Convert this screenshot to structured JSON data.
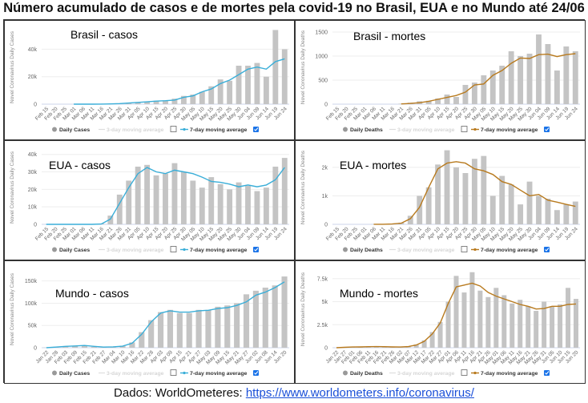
{
  "title": "Número acumulado de casos e de mortes pela covid-19 no Brasil, EUA e no Mundo até 24/06",
  "footer": {
    "label": "Dados: WorldOmeteres: ",
    "link": "https://www.worldometers.info/coronavirus/"
  },
  "colors": {
    "bars": "#c4c4c4",
    "cases_line": "#3aaed8",
    "deaths_line": "#b87a1e",
    "checkbox": "#1a73e8"
  },
  "chart_data": [
    {
      "type": "bar",
      "overlay_label": "Brasil - casos",
      "ylabel": "Novel Coronavirus Daily Cases",
      "line_color_key": "cases_line",
      "legend": [
        "Daily Cases",
        "3-day moving average",
        "7-day moving average"
      ],
      "ylim": [
        0,
        56000
      ],
      "yticks": [
        0,
        20000,
        40000
      ],
      "ytick_labels": [
        "0",
        "20k",
        "40k"
      ],
      "x": [
        "Feb 15",
        "Feb 20",
        "Feb 25",
        "Mar 01",
        "Mar 06",
        "Mar 11",
        "Mar 16",
        "Mar 21",
        "Mar 26",
        "Mar 31",
        "Apr 05",
        "Apr 10",
        "Apr 15",
        "Apr 20",
        "Apr 25",
        "Apr 30",
        "May 05",
        "May 10",
        "May 15",
        "May 20",
        "May 25",
        "May 30",
        "Jun 04",
        "Jun 09",
        "Jun 14",
        "Jun 19",
        "Jun 24"
      ],
      "daily": [
        0,
        0,
        0,
        0,
        0,
        0,
        100,
        300,
        400,
        1000,
        1500,
        1800,
        2500,
        2500,
        4000,
        6000,
        7000,
        9000,
        13000,
        18000,
        17000,
        28000,
        28000,
        30000,
        20000,
        54000,
        40000
      ],
      "avg7": [
        null,
        null,
        null,
        0,
        0,
        0,
        50,
        200,
        400,
        800,
        1300,
        1700,
        2200,
        2500,
        3000,
        5000,
        6000,
        9000,
        11000,
        15000,
        17500,
        21500,
        25500,
        27000,
        25500,
        31000,
        33000
      ]
    },
    {
      "type": "bar",
      "overlay_label": "Brasil - mortes",
      "ylabel": "Novel Coronavirus Daily Deaths",
      "line_color_key": "deaths_line",
      "legend": [
        "Daily Deaths",
        "3-day moving average",
        "7-day moving average"
      ],
      "ylim": [
        0,
        1600
      ],
      "yticks": [
        0,
        500,
        1000,
        1500
      ],
      "ytick_labels": [
        "0",
        "500",
        "1000",
        "1500"
      ],
      "x": [
        "Feb 15",
        "Feb 20",
        "Feb 25",
        "Mar 01",
        "Mar 06",
        "Mar 11",
        "Mar 16",
        "Mar 21",
        "Mar 26",
        "Mar 31",
        "Apr 05",
        "Apr 10",
        "Apr 15",
        "Apr 20",
        "Apr 25",
        "Apr 30",
        "May 05",
        "May 10",
        "May 15",
        "May 20",
        "May 25",
        "May 30",
        "Jun 04",
        "Jun 09",
        "Jun 14",
        "Jun 19",
        "Jun 24"
      ],
      "daily": [
        0,
        0,
        0,
        0,
        0,
        0,
        0,
        10,
        30,
        60,
        70,
        120,
        200,
        150,
        400,
        450,
        600,
        700,
        800,
        1100,
        1000,
        1050,
        1450,
        1250,
        700,
        1200,
        1100
      ],
      "avg7": [
        null,
        null,
        null,
        null,
        null,
        null,
        null,
        5,
        15,
        30,
        60,
        100,
        140,
        180,
        250,
        400,
        420,
        600,
        700,
        850,
        960,
        950,
        1030,
        1040,
        990,
        1030,
        1050
      ]
    },
    {
      "type": "bar",
      "overlay_label": "EUA - casos",
      "ylabel": "Novel Coronavirus Daily Cases",
      "line_color_key": "cases_line",
      "legend": [
        "Daily Cases",
        "3-day moving average",
        "7-day moving average"
      ],
      "ylim": [
        0,
        44000
      ],
      "yticks": [
        0,
        10000,
        20000,
        30000,
        40000
      ],
      "ytick_labels": [
        "0",
        "10k",
        "20k",
        "30k",
        "40k"
      ],
      "x": [
        "Feb 15",
        "Feb 20",
        "Feb 25",
        "Mar 01",
        "Mar 06",
        "Mar 11",
        "Mar 16",
        "Mar 21",
        "Mar 26",
        "Mar 31",
        "Apr 05",
        "Apr 10",
        "Apr 15",
        "Apr 20",
        "Apr 25",
        "Apr 30",
        "May 05",
        "May 10",
        "May 15",
        "May 20",
        "May 25",
        "May 30",
        "Jun 04",
        "Jun 09",
        "Jun 14",
        "Jun 19",
        "Jun 24"
      ],
      "daily": [
        0,
        0,
        0,
        0,
        0,
        0,
        500,
        5000,
        17000,
        25000,
        33000,
        34000,
        28000,
        29000,
        35000,
        30000,
        25000,
        21000,
        27000,
        23000,
        20000,
        24000,
        22000,
        19000,
        21000,
        33000,
        38000
      ],
      "avg7": [
        0,
        0,
        0,
        0,
        0,
        0,
        200,
        3000,
        12000,
        21000,
        29000,
        32500,
        30000,
        29000,
        31000,
        30000,
        29000,
        27000,
        24500,
        24000,
        23000,
        21500,
        22500,
        21500,
        22500,
        25500,
        32500
      ]
    },
    {
      "type": "bar",
      "overlay_label": "EUA - mortes",
      "ylabel": "Novel Coronavirus Daily Deaths",
      "line_color_key": "deaths_line",
      "legend": [
        "Daily Deaths",
        "3-day moving average",
        "7-day moving average"
      ],
      "ylim": [
        0,
        2700
      ],
      "yticks": [
        0,
        1000,
        2000
      ],
      "ytick_labels": [
        "0",
        "1k",
        "2k"
      ],
      "x": [
        "Feb 15",
        "Feb 20",
        "Feb 25",
        "Mar 01",
        "Mar 06",
        "Mar 11",
        "Mar 16",
        "Mar 21",
        "Mar 26",
        "Mar 31",
        "Apr 05",
        "Apr 10",
        "Apr 15",
        "Apr 20",
        "Apr 25",
        "Apr 30",
        "May 05",
        "May 10",
        "May 15",
        "May 20",
        "May 25",
        "May 30",
        "Jun 04",
        "Jun 09",
        "Jun 14",
        "Jun 19",
        "Jun 24"
      ],
      "daily": [
        0,
        0,
        0,
        0,
        5,
        5,
        20,
        60,
        300,
        1000,
        1300,
        2100,
        2600,
        2000,
        1800,
        2300,
        2400,
        1000,
        1700,
        1400,
        700,
        1500,
        1000,
        900,
        500,
        700,
        800
      ],
      "avg7": [
        null,
        null,
        null,
        null,
        2,
        3,
        10,
        40,
        200,
        600,
        1300,
        1950,
        2150,
        2200,
        2150,
        1950,
        1880,
        1750,
        1500,
        1400,
        1200,
        1000,
        1050,
        850,
        780,
        700,
        630
      ]
    },
    {
      "type": "bar",
      "overlay_label": "Mundo - casos",
      "ylabel": "Novel Coronavirus Daily Cases",
      "line_color_key": "cases_line",
      "legend": [
        "Daily Cases",
        "3-day moving average",
        "7-day moving average"
      ],
      "ylim": [
        0,
        180000
      ],
      "yticks": [
        0,
        50000,
        100000,
        150000
      ],
      "ytick_labels": [
        "0",
        "50k",
        "100k",
        "150k"
      ],
      "x": [
        "Jan 22",
        "Jan 28",
        "Feb 03",
        "Feb 09",
        "Feb 15",
        "Feb 21",
        "Feb 27",
        "Mar 04",
        "Mar 10",
        "Mar 16",
        "Mar 22",
        "Mar 28",
        "Apr 03",
        "Apr 09",
        "Apr 15",
        "Apr 21",
        "Apr 27",
        "May 03",
        "May 09",
        "May 15",
        "May 21",
        "May 27",
        "Jun 02",
        "Jun 08",
        "Jun 14",
        "Jun 20"
      ],
      "daily": [
        500,
        2000,
        3500,
        4000,
        5000,
        2000,
        1500,
        2500,
        4000,
        12000,
        35000,
        62000,
        80000,
        85000,
        78000,
        78000,
        85000,
        85000,
        92000,
        95000,
        100000,
        120000,
        128000,
        135000,
        140000,
        160000
      ],
      "avg7": [
        0,
        1500,
        3000,
        4000,
        5000,
        3000,
        1500,
        2000,
        3500,
        10000,
        30000,
        58000,
        78000,
        83000,
        80000,
        80000,
        83000,
        84000,
        88000,
        90000,
        95000,
        103000,
        118000,
        125000,
        135000,
        148000
      ]
    },
    {
      "type": "bar",
      "overlay_label": "Mundo - mortes",
      "ylabel": "Novel Coronavirus Daily Deaths",
      "line_color_key": "deaths_line",
      "legend": [
        "Daily Deaths",
        "3-day moving average",
        "7-day moving average"
      ],
      "ylim": [
        0,
        8700
      ],
      "yticks": [
        0,
        2500,
        5000,
        7500
      ],
      "ytick_labels": [
        "0",
        "2.5k",
        "5k",
        "7.5k"
      ],
      "x": [
        "Jan 22",
        "Jan 27",
        "Feb 01",
        "Feb 06",
        "Feb 11",
        "Feb 16",
        "Feb 21",
        "Feb 26",
        "Mar 02",
        "Mar 07",
        "Mar 12",
        "Mar 17",
        "Mar 22",
        "Mar 27",
        "Apr 01",
        "Apr 06",
        "Apr 11",
        "Apr 16",
        "Apr 21",
        "Apr 26",
        "May 01",
        "May 06",
        "May 11",
        "May 16",
        "May 21",
        "May 26",
        "May 31",
        "Jun 05",
        "Jun 10",
        "Jun 15",
        "Jun 20"
      ],
      "daily": [
        0,
        50,
        100,
        100,
        120,
        130,
        120,
        100,
        80,
        150,
        350,
        800,
        1700,
        2800,
        5000,
        7800,
        6000,
        8200,
        6200,
        5500,
        6500,
        5700,
        4800,
        5200,
        4500,
        4000,
        5000,
        4500,
        4700,
        6500,
        5300
      ],
      "avg7": [
        0,
        40,
        80,
        90,
        110,
        120,
        110,
        90,
        80,
        120,
        300,
        700,
        1500,
        2700,
        4800,
        6600,
        6800,
        7000,
        6700,
        6000,
        5600,
        5300,
        5000,
        4700,
        4500,
        4200,
        4250,
        4500,
        4500,
        4700,
        4750
      ]
    }
  ]
}
